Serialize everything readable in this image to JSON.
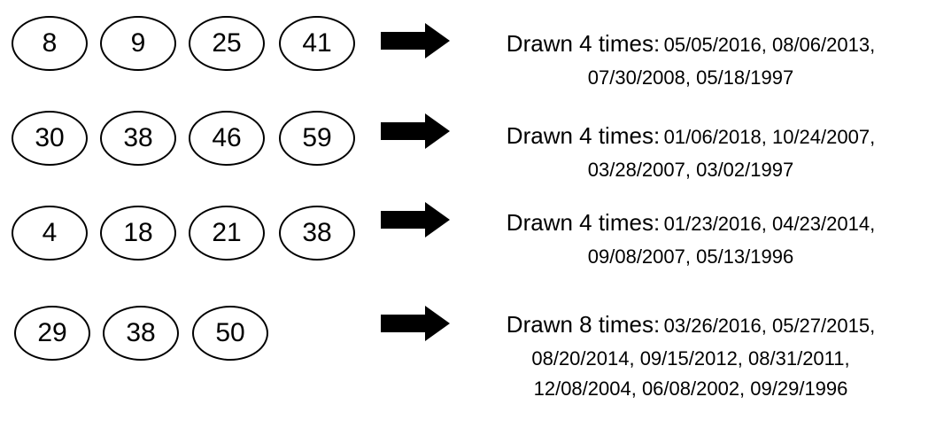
{
  "rows": [
    {
      "balls": [
        "8",
        "9",
        "25",
        "41"
      ],
      "label": "Drawn 4 times:",
      "dates_line1": "05/05/2016, 08/06/2013,",
      "dates_line2": "07/30/2008, 05/18/1997",
      "dates_line3": ""
    },
    {
      "balls": [
        "30",
        "38",
        "46",
        "59"
      ],
      "label": "Drawn 4 times:",
      "dates_line1": "01/06/2018, 10/24/2007,",
      "dates_line2": "03/28/2007, 03/02/1997",
      "dates_line3": ""
    },
    {
      "balls": [
        "4",
        "18",
        "21",
        "38"
      ],
      "label": "Drawn 4 times:",
      "dates_line1": "01/23/2016, 04/23/2014,",
      "dates_line2": "09/08/2007, 05/13/1996",
      "dates_line3": ""
    },
    {
      "balls": [
        "29",
        "38",
        "50"
      ],
      "label": "Drawn 8 times:",
      "dates_line1": "03/26/2016, 05/27/2015,",
      "dates_line2": "08/20/2014, 09/15/2012, 08/31/2011,",
      "dates_line3": "12/08/2004, 06/08/2002, 09/29/1996"
    }
  ]
}
